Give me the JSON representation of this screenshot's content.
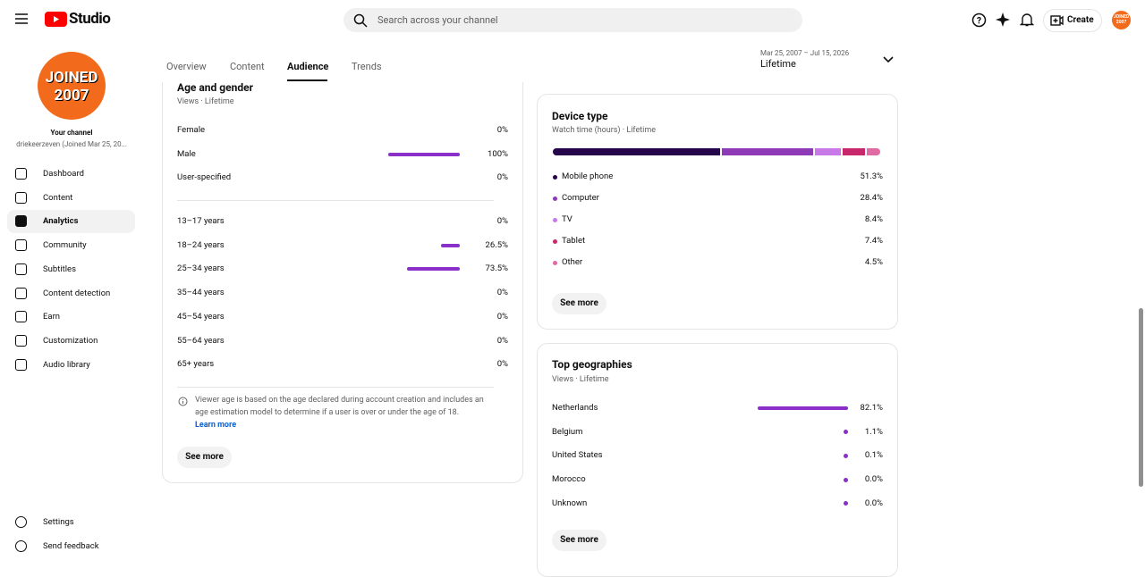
{
  "header": {
    "logo": "Studio",
    "search_placeholder": "Search across your channel",
    "create": "Create",
    "avatar_text": "JOINED 2007"
  },
  "sidebar": {
    "avatar_lines": [
      "JOINED",
      "2007"
    ],
    "channel_title": "Your channel",
    "channel_sub": "driekeerzeven (Joined Mar 25, 20...",
    "items": [
      "Dashboard",
      "Content",
      "Analytics",
      "Community",
      "Subtitles",
      "Content detection",
      "Earn",
      "Customization",
      "Audio library"
    ],
    "active": "Analytics",
    "footer": [
      "Settings",
      "Send feedback"
    ]
  },
  "tabs": {
    "items": [
      "Overview",
      "Content",
      "Audience",
      "Trends"
    ],
    "active": "Audience"
  },
  "date_range": {
    "range": "Mar 25, 2007 – Jul 15, 2026",
    "label": "Lifetime"
  },
  "age_gender": {
    "title": "Age and gender",
    "subtitle": "Views · Lifetime",
    "color": "#8b2fc9",
    "gender": [
      {
        "label": "Female",
        "value": 0,
        "value_label": "0%"
      },
      {
        "label": "Male",
        "value": 100,
        "value_label": "100%"
      },
      {
        "label": "User-specified",
        "value": 0,
        "value_label": "0%"
      }
    ],
    "age": [
      {
        "label": "13–17 years",
        "value": 0,
        "value_label": "0%"
      },
      {
        "label": "18–24 years",
        "value": 26.5,
        "value_label": "26.5%"
      },
      {
        "label": "25–34 years",
        "value": 73.5,
        "value_label": "73.5%"
      },
      {
        "label": "35–44 years",
        "value": 0,
        "value_label": "0%"
      },
      {
        "label": "45–54 years",
        "value": 0,
        "value_label": "0%"
      },
      {
        "label": "55–64 years",
        "value": 0,
        "value_label": "0%"
      },
      {
        "label": "65+ years",
        "value": 0,
        "value_label": "0%"
      }
    ],
    "note": "Viewer age is based on the age declared during account creation and includes an age estimation model to determine if a user is over or under the age of 18.",
    "learn_more": "Learn more",
    "see_more": "See more"
  },
  "device_type": {
    "title": "Device type",
    "subtitle": "Watch time (hours) · Lifetime",
    "series": [
      {
        "name": "Mobile phone",
        "color": "#25064a",
        "value": 51.3,
        "value_label": "51.3%"
      },
      {
        "name": "Computer",
        "color": "#8e3ab6",
        "value": 28.4,
        "value_label": "28.4%"
      },
      {
        "name": "TV",
        "color": "#c779e8",
        "value": 8.4,
        "value_label": "8.4%"
      },
      {
        "name": "Tablet",
        "color": "#c8276b",
        "value": 7.4,
        "value_label": "7.4%"
      },
      {
        "name": "Other",
        "color": "#e06aa3",
        "value": 4.5,
        "value_label": "4.5%"
      }
    ],
    "see_more": "See more"
  },
  "top_geographies": {
    "title": "Top geographies",
    "subtitle": "Views · Lifetime",
    "color": "#8b2fc9",
    "rows": [
      {
        "label": "Netherlands",
        "value": 82.1,
        "value_label": "82.1%"
      },
      {
        "label": "Belgium",
        "value": 1.1,
        "value_label": "1.1%"
      },
      {
        "label": "United States",
        "value": 0.1,
        "value_label": "0.1%"
      },
      {
        "label": "Morocco",
        "value": 0.0,
        "value_label": "0.0%"
      },
      {
        "label": "Unknown",
        "value": 0.0,
        "value_label": "0.0%"
      }
    ],
    "see_more": "See more"
  }
}
